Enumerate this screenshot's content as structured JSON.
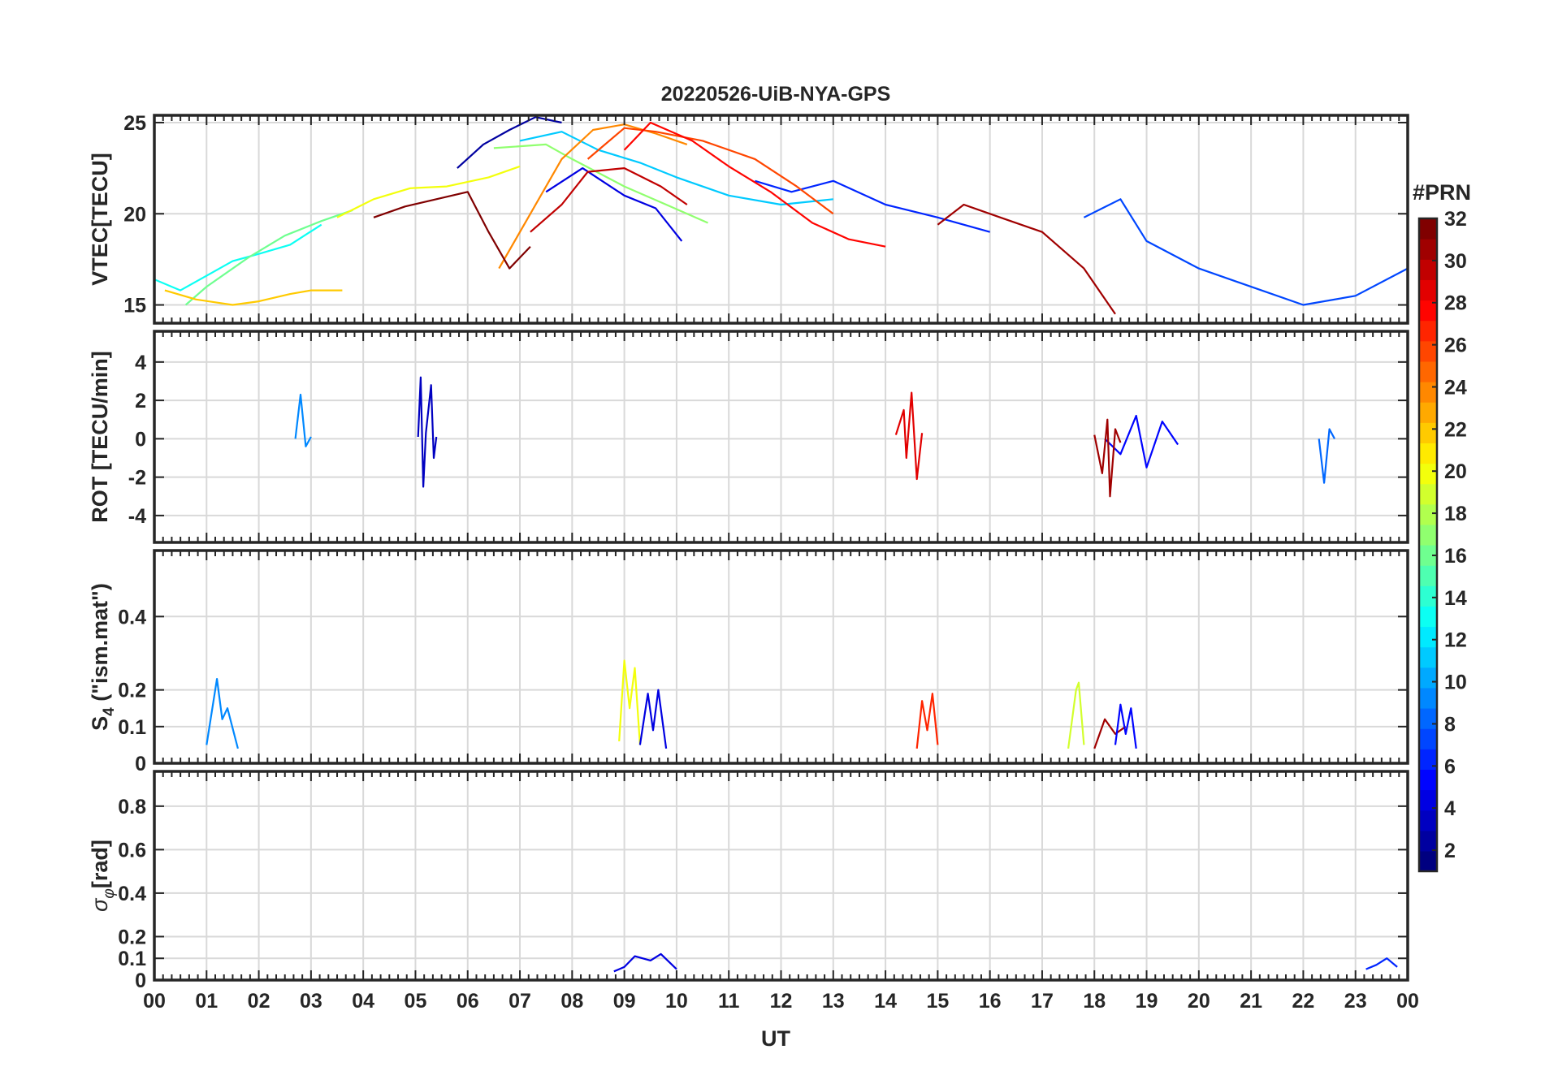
{
  "chart_data": {
    "type": "line",
    "title": "20220526-UiB-NYA-GPS",
    "xlabel": "UT",
    "x_tick_labels": [
      "00",
      "01",
      "02",
      "03",
      "04",
      "05",
      "06",
      "07",
      "08",
      "09",
      "10",
      "11",
      "12",
      "13",
      "14",
      "15",
      "16",
      "17",
      "18",
      "19",
      "20",
      "21",
      "22",
      "23",
      "00"
    ],
    "xlim": [
      0,
      24
    ],
    "colorbar": {
      "title": "#PRN",
      "colormap": "jet",
      "range": [
        1,
        32
      ],
      "ticks": [
        "2",
        "4",
        "6",
        "8",
        "10",
        "12",
        "14",
        "16",
        "18",
        "20",
        "22",
        "24",
        "26",
        "28",
        "30",
        "32"
      ],
      "tick_values": [
        2,
        4,
        6,
        8,
        10,
        12,
        14,
        16,
        18,
        20,
        22,
        24,
        26,
        28,
        30,
        32
      ]
    },
    "panels": [
      {
        "name": "vtec",
        "ylabel": "VTEC[TECU]",
        "ylim": [
          14,
          25.4
        ],
        "yticks": [
          15,
          20,
          25
        ],
        "ytick_labels": [
          "15",
          "20",
          "25"
        ],
        "grid": true,
        "series": [
          {
            "prn": 2,
            "x": [
              5.8,
              6.3,
              6.8,
              7.3,
              7.8
            ],
            "y": [
              22.5,
              23.8,
              24.6,
              25.3,
              25.0
            ]
          },
          {
            "prn": 4,
            "x": [
              7.5,
              8.2,
              9.0,
              9.6,
              10.1
            ],
            "y": [
              21.2,
              22.5,
              21.0,
              20.3,
              18.5
            ]
          },
          {
            "prn": 6,
            "x": [
              11.5,
              12.2,
              13.0,
              14.0,
              15.0,
              16.0
            ],
            "y": [
              21.8,
              21.2,
              21.8,
              20.5,
              19.8,
              19.0
            ]
          },
          {
            "prn": 7,
            "x": [
              17.8,
              18.5,
              19.0,
              20.0,
              21.0,
              22.0,
              23.0,
              24.0
            ],
            "y": [
              19.8,
              20.8,
              18.5,
              17.0,
              16.0,
              15.0,
              15.5,
              17.0
            ]
          },
          {
            "prn": 11,
            "x": [
              7.0,
              7.8,
              8.5,
              9.3,
              10.0,
              11.0,
              12.0,
              13.0
            ],
            "y": [
              24.0,
              24.5,
              23.5,
              22.8,
              22.0,
              21.0,
              20.5,
              20.8
            ]
          },
          {
            "prn": 13,
            "x": [
              0.0,
              0.5,
              1.0,
              1.5,
              2.0,
              2.6,
              3.2
            ],
            "y": [
              16.4,
              15.8,
              16.6,
              17.4,
              17.8,
              18.3,
              19.4
            ]
          },
          {
            "prn": 16,
            "x": [
              0.6,
              1.0,
              1.8,
              2.5,
              3.2,
              3.8
            ],
            "y": [
              15.0,
              16.0,
              17.6,
              18.8,
              19.6,
              20.2
            ]
          },
          {
            "prn": 17,
            "x": [
              6.5,
              7.5,
              8.0,
              9.0,
              9.8,
              10.6
            ],
            "y": [
              23.6,
              23.8,
              23.0,
              21.5,
              20.5,
              19.5
            ]
          },
          {
            "prn": 20,
            "x": [
              3.5,
              4.2,
              4.9,
              5.6,
              6.4,
              7.0
            ],
            "y": [
              19.8,
              20.8,
              21.4,
              21.5,
              22.0,
              22.6
            ]
          },
          {
            "prn": 22,
            "x": [
              0.2,
              0.8,
              1.5,
              2.0,
              2.6,
              3.0,
              3.6
            ],
            "y": [
              15.8,
              15.3,
              15.0,
              15.2,
              15.6,
              15.8,
              15.8
            ]
          },
          {
            "prn": 24,
            "x": [
              6.6,
              7.2,
              7.8,
              8.4,
              9.0,
              9.6,
              10.2
            ],
            "y": [
              17.0,
              20.0,
              23.0,
              24.6,
              24.9,
              24.4,
              23.8
            ]
          },
          {
            "prn": 26,
            "x": [
              8.3,
              9.0,
              9.6,
              10.5,
              11.5,
              12.3,
              13.0
            ],
            "y": [
              23.0,
              24.7,
              24.5,
              24.0,
              23.0,
              21.5,
              20.0
            ]
          },
          {
            "prn": 28,
            "x": [
              9.0,
              9.5,
              10.3,
              11.0,
              11.8,
              12.6,
              13.3,
              14.0
            ],
            "y": [
              23.5,
              25.0,
              24.0,
              22.6,
              21.2,
              19.5,
              18.6,
              18.2
            ]
          },
          {
            "prn": 30,
            "x": [
              7.2,
              7.8,
              8.3,
              9.0,
              9.7,
              10.2
            ],
            "y": [
              19.0,
              20.5,
              22.3,
              22.5,
              21.5,
              20.5
            ]
          },
          {
            "prn": 31,
            "x": [
              15.0,
              15.5,
              16.2,
              17.0,
              17.8,
              18.4
            ],
            "y": [
              19.4,
              20.5,
              19.8,
              19.0,
              17.0,
              14.5
            ]
          },
          {
            "prn": 32,
            "x": [
              4.2,
              4.8,
              5.4,
              6.0,
              6.4,
              6.8,
              7.2
            ],
            "y": [
              19.8,
              20.4,
              20.8,
              21.2,
              19.0,
              17.0,
              18.2
            ]
          }
        ]
      },
      {
        "name": "rot",
        "ylabel": "ROT [TECU/min]",
        "ylim": [
          -5.4,
          5.6
        ],
        "yticks": [
          -4,
          -2,
          0,
          2,
          4
        ],
        "ytick_labels": [
          "-4",
          "-2",
          "0",
          "2",
          "4"
        ],
        "grid": true,
        "series": [
          {
            "prn": 3,
            "x": [
              5.05,
              5.1,
              5.15,
              5.2,
              5.3,
              5.35,
              5.4
            ],
            "y": [
              0.1,
              3.2,
              -2.5,
              0.3,
              2.8,
              -1.0,
              0.1
            ]
          },
          {
            "prn": 5,
            "x": [
              18.2,
              18.5,
              18.8,
              19.0,
              19.3,
              19.6
            ],
            "y": [
              0.0,
              -0.8,
              1.2,
              -1.5,
              0.9,
              -0.3
            ]
          },
          {
            "prn": 29,
            "x": [
              14.2,
              14.35,
              14.4,
              14.5,
              14.6,
              14.7
            ],
            "y": [
              0.2,
              1.5,
              -1.0,
              2.4,
              -2.1,
              0.3
            ]
          },
          {
            "prn": 31,
            "x": [
              18.0,
              18.15,
              18.25,
              18.3,
              18.4,
              18.5
            ],
            "y": [
              0.2,
              -1.8,
              1.0,
              -3.0,
              0.5,
              -0.2
            ]
          },
          {
            "prn": 9,
            "x": [
              2.7,
              2.8,
              2.9,
              3.0
            ],
            "y": [
              0.0,
              2.3,
              -0.4,
              0.1
            ]
          },
          {
            "prn": 8,
            "x": [
              22.3,
              22.4,
              22.5,
              22.6
            ],
            "y": [
              0.0,
              -2.3,
              0.5,
              0.0
            ]
          }
        ]
      },
      {
        "name": "s4",
        "ylabel": "S4 (\"ism.mat\")",
        "ylabel_parts": [
          "S",
          "4",
          " (\"ism.mat\")"
        ],
        "ylim": [
          0,
          0.58
        ],
        "yticks": [
          0,
          0.1,
          0.2,
          0.4
        ],
        "ytick_labels": [
          "0",
          "0.1",
          "0.2",
          "0.4"
        ],
        "grid": true,
        "series": [
          {
            "prn": 9,
            "x": [
              1.0,
              1.2,
              1.3,
              1.4,
              1.6
            ],
            "y": [
              0.05,
              0.23,
              0.12,
              0.15,
              0.04
            ]
          },
          {
            "prn": 20,
            "x": [
              8.9,
              9.0,
              9.1,
              9.2,
              9.3
            ],
            "y": [
              0.06,
              0.28,
              0.15,
              0.26,
              0.05
            ]
          },
          {
            "prn": 4,
            "x": [
              9.3,
              9.45,
              9.55,
              9.65,
              9.8
            ],
            "y": [
              0.05,
              0.19,
              0.09,
              0.2,
              0.04
            ]
          },
          {
            "prn": 19,
            "x": [
              17.5,
              17.65,
              17.7,
              17.8
            ],
            "y": [
              0.04,
              0.2,
              0.22,
              0.05
            ]
          },
          {
            "prn": 27,
            "x": [
              14.6,
              14.7,
              14.8,
              14.9,
              15.0
            ],
            "y": [
              0.04,
              0.17,
              0.09,
              0.19,
              0.05
            ]
          },
          {
            "prn": 31,
            "x": [
              18.0,
              18.2,
              18.4,
              18.6
            ],
            "y": [
              0.04,
              0.12,
              0.08,
              0.1
            ]
          },
          {
            "prn": 5,
            "x": [
              18.4,
              18.5,
              18.6,
              18.7,
              18.8
            ],
            "y": [
              0.05,
              0.16,
              0.08,
              0.15,
              0.04
            ]
          }
        ]
      },
      {
        "name": "sigma-phi",
        "ylabel": "σφ[rad]",
        "ylabel_parts": [
          "σ",
          "φ",
          "[rad]"
        ],
        "ylim": [
          0,
          0.96
        ],
        "yticks": [
          0,
          0.1,
          0.2,
          0.4,
          0.6,
          0.8
        ],
        "ytick_labels": [
          "0",
          "0.1",
          "0.2",
          "0.4",
          "0.6",
          "0.8"
        ],
        "grid": true,
        "series": [
          {
            "prn": 4,
            "x": [
              8.8,
              9.0,
              9.2,
              9.5,
              9.7,
              10.0
            ],
            "y": [
              0.04,
              0.06,
              0.11,
              0.09,
              0.12,
              0.05
            ]
          },
          {
            "prn": 6,
            "x": [
              23.2,
              23.4,
              23.6,
              23.8
            ],
            "y": [
              0.05,
              0.07,
              0.1,
              0.06
            ]
          }
        ]
      }
    ]
  }
}
